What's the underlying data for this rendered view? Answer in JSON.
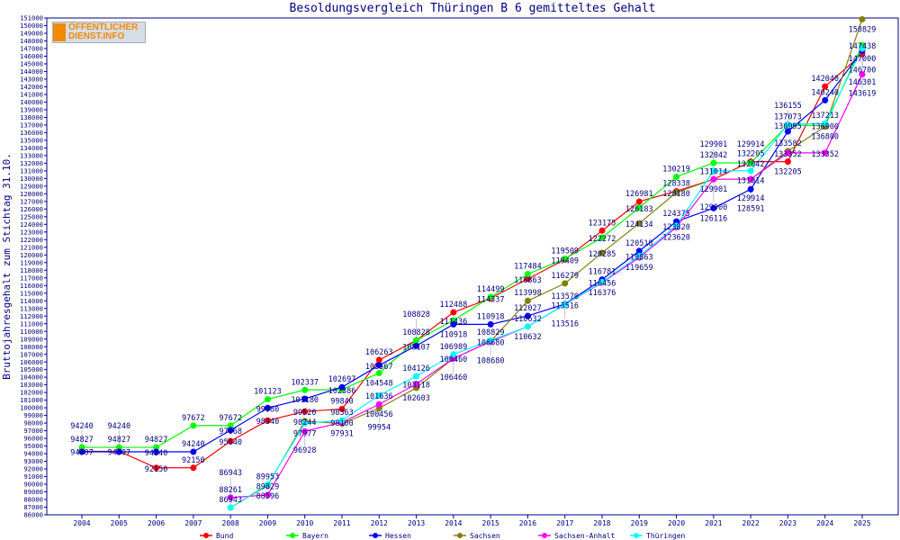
{
  "chart_data": {
    "type": "line",
    "title": "Besoldungsvergleich Thüringen B 6 gemitteltes Gehalt",
    "ylabel": "Bruttojahresgehalt zum Stichtag 31.10.",
    "xlabel": "",
    "ylim": [
      86000,
      151000
    ],
    "ytick_step": 1000,
    "grid": false,
    "legend_placement": "bottom",
    "logo_text": "ÖFFENTLICHER DIENST.INFO",
    "x": [
      2004,
      2005,
      2006,
      2007,
      2008,
      2009,
      2010,
      2011,
      2012,
      2013,
      2014,
      2015,
      2016,
      2017,
      2018,
      2019,
      2020,
      2021,
      2022,
      2023,
      2024,
      2025
    ],
    "series": [
      {
        "name": "Bund",
        "color": "#ff0000",
        "values": [
          94307,
          94307,
          92150,
          92150,
          95640,
          98340,
          99520,
          99840,
          106263,
          108828,
          112488,
          114337,
          116863,
          119409,
          123175,
          126981,
          128338,
          129900,
          132205,
          132205,
          142040,
          146301
        ]
      },
      {
        "name": "Bayern",
        "color": "#00ff00",
        "values": [
          94827,
          94827,
          94827,
          97672,
          97672,
          101123,
          102337,
          102386,
          104548,
          108828,
          111436,
          114499,
          117484,
          119509,
          122272,
          126183,
          130219,
          132042,
          132042,
          136995,
          136900,
          147438
        ]
      },
      {
        "name": "Hessen",
        "color": "#0000ff",
        "values": [
          94240,
          94240,
          94240,
          94240,
          97068,
          99980,
          101180,
          102697,
          105567,
          108107,
          110918,
          110918,
          112027,
          113570,
          116781,
          120518,
          124375,
          126116,
          128591,
          136155,
          140240,
          146700
        ]
      },
      {
        "name": "Sachsen",
        "color": "#808000",
        "values": [
          null,
          null,
          null,
          null,
          86943,
          89829,
          98244,
          97931,
          99954,
          102603,
          106460,
          108680,
          113998,
          116279,
          120285,
          124134,
          128180,
          129901,
          129914,
          133582,
          136800,
          150829
        ]
      },
      {
        "name": "Sachsen-Anhalt",
        "color": "#ff00ff",
        "values": [
          null,
          null,
          null,
          null,
          88261,
          88596,
          96928,
          98100,
          100456,
          103118,
          106460,
          108680,
          110632,
          113516,
          116376,
          119659,
          123620,
          129901,
          129914,
          133352,
          133352,
          143619
        ]
      },
      {
        "name": "Thüringen",
        "color": "#00ffff",
        "values": [
          null,
          null,
          null,
          null,
          86943,
          89953,
          97977,
          98363,
          101636,
          104126,
          106989,
          108829,
          110632,
          113516,
          116456,
          119863,
          123820,
          131014,
          131014,
          137073,
          137213,
          147000
        ]
      }
    ]
  }
}
